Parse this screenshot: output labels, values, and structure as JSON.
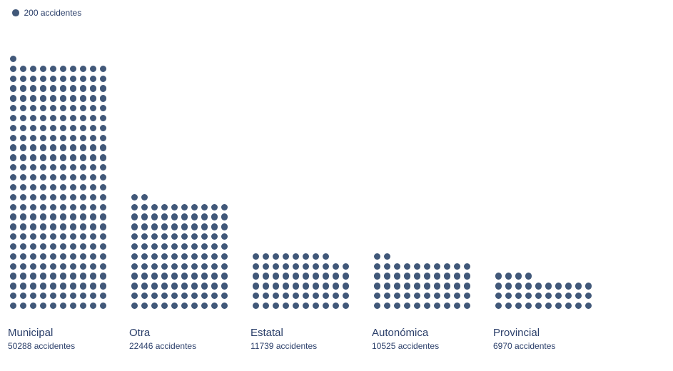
{
  "legend": {
    "label": "200 accidentes"
  },
  "chart_data": {
    "type": "bar",
    "variant": "dot-matrix-pictogram",
    "unit_per_dot": 200,
    "dots_per_row": 10,
    "legend_label": "200 accidentes",
    "categories": [
      "Municipal",
      "Otra",
      "Estatal",
      "Autonómica",
      "Provincial"
    ],
    "values": [
      50288,
      22446,
      11739,
      10525,
      6970
    ],
    "value_labels": [
      "50288 accidentes",
      "22446 accidentes",
      "11739 accidentes",
      "10525 accidentes",
      "6970 accidentes"
    ],
    "dot_counts": [
      251,
      112,
      58,
      52,
      34
    ],
    "colors": {
      "dot": "#415879",
      "text": "#2b3f6a"
    },
    "layout": {
      "legend_position": "top-left",
      "grid": false,
      "axes": false,
      "bars_bottom_aligned": true,
      "remainder_row_position": "top-left-of-column"
    }
  }
}
